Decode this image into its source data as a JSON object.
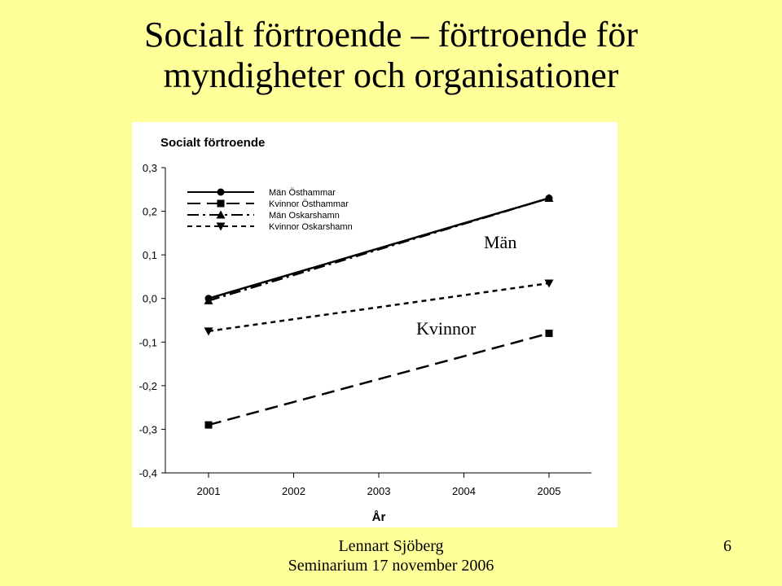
{
  "slide": {
    "title_line1": "Socialt förtroende – förtroende för",
    "title_line2": "myndigheter och organisationer",
    "footer_author": "Lennart Sjöberg",
    "footer_event": "Seminarium 17 november 2006",
    "page_number": "6"
  },
  "chart_data": {
    "type": "line",
    "title": "Socialt förtroende",
    "xlabel": "År",
    "ylabel": "",
    "x": [
      2001,
      2002,
      2003,
      2004,
      2005
    ],
    "xticks": [
      "2001",
      "2002",
      "2003",
      "2004",
      "2005"
    ],
    "ylim": [
      -0.4,
      0.3
    ],
    "yticks": [
      0.3,
      0.2,
      0.1,
      0.0,
      -0.1,
      -0.2,
      -0.3,
      -0.4
    ],
    "ytick_labels": [
      "0,3",
      "0,2",
      "0,1",
      "0,0",
      "-0,1",
      "-0,2",
      "-0,3",
      "-0,4"
    ],
    "legend_position": "top-left",
    "grid": false,
    "series": [
      {
        "name": "Män Östhammar",
        "x": [
          2001,
          2005
        ],
        "values": [
          0.0,
          0.23
        ],
        "marker": "circle",
        "dash": "solid"
      },
      {
        "name": "Kvinnor Östhammar",
        "x": [
          2001,
          2005
        ],
        "values": [
          -0.29,
          -0.08
        ],
        "marker": "square",
        "dash": "long-dash"
      },
      {
        "name": "Män Oskarshamn",
        "x": [
          2001,
          2005
        ],
        "values": [
          -0.005,
          0.23
        ],
        "marker": "triangle-up",
        "dash": "dash-dot"
      },
      {
        "name": "Kvinnor Oskarshamn",
        "x": [
          2001,
          2005
        ],
        "values": [
          -0.075,
          0.035
        ],
        "marker": "triangle-down",
        "dash": "short-dash"
      }
    ],
    "annotations": [
      "Män",
      "Kvinnor"
    ]
  }
}
